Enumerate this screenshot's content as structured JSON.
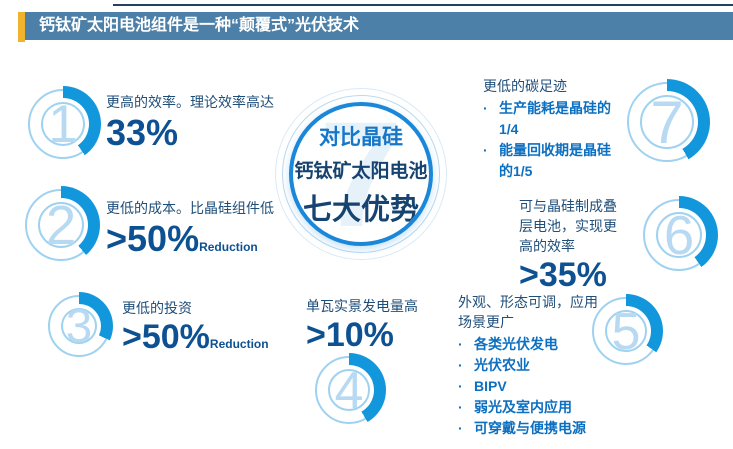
{
  "title": {
    "text": "钙钛矿太阳电池组件是一种“颠覆式”光伏技术"
  },
  "center": {
    "watermark": "7",
    "line1": "对比晶硅",
    "line2": "钙钛矿太阳电池",
    "line3": "七大优势"
  },
  "advantages": [
    {
      "num": "1",
      "arc_deg": 145,
      "heading": "更高的效率。理论效率高达",
      "stat": "33%"
    },
    {
      "num": "2",
      "arc_deg": 140,
      "heading": "更低的成本。比晶硅组件低",
      "stat": ">50%",
      "stat_suffix": "Reduction"
    },
    {
      "num": "3",
      "arc_deg": 115,
      "heading": "更低的投资",
      "stat": ">50%",
      "stat_suffix": "Reduction"
    },
    {
      "num": "4",
      "arc_deg": 150,
      "heading": "单瓦实景发电量高",
      "stat": ">10%"
    },
    {
      "num": "5",
      "arc_deg": 125,
      "heading": "外观、形态可调，应用场景更广",
      "bullets": [
        "各类光伏发电",
        "光伏农业",
        "BIPV",
        "弱光及室内应用",
        "可穿戴与便携电源"
      ]
    },
    {
      "num": "6",
      "arc_deg": 145,
      "heading": "可与晶硅制成叠层电池，实现更高的效率",
      "stat": ">35%"
    },
    {
      "num": "7",
      "arc_deg": 150,
      "heading": "更低的碳足迹",
      "bullets": [
        "生产能耗是晶硅的1/4",
        "能量回收期是晶硅的1/5"
      ]
    }
  ],
  "colors": {
    "accent_blue": "#1297dd",
    "light_ring_blue": "#9ed2f0",
    "pale_number_blue": "#b7daf2",
    "heading_navy": "#1f4e79",
    "stat_navy": "#0d5192",
    "bullet_blue": "#0d6fc0",
    "center_border_blue": "#1b87d9",
    "center_accent_blue": "#1677c8",
    "title_bar_blue": "#4d80a8",
    "title_accent_yellow": "#f0b32e",
    "top_line_navy": "#24425f"
  }
}
